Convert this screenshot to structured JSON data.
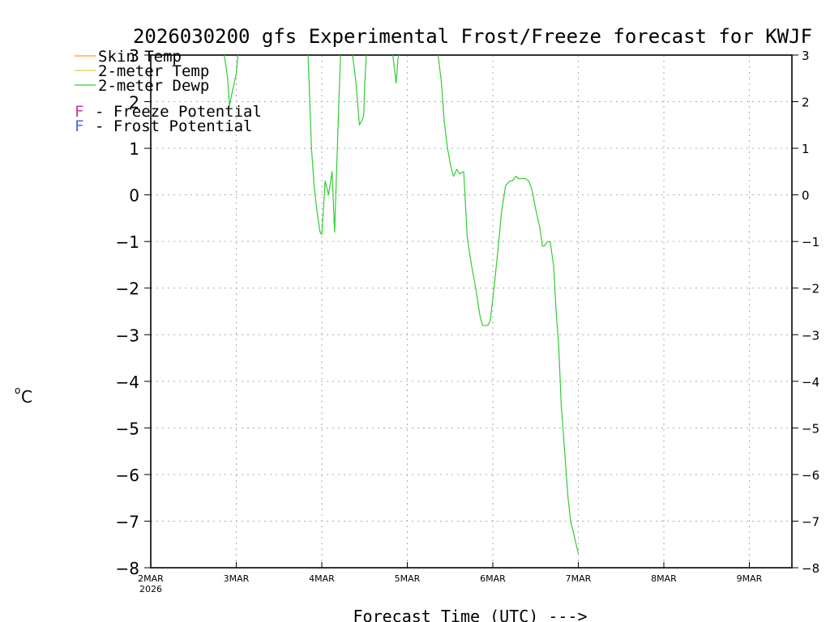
{
  "chart_data": {
    "type": "line",
    "title": "2026030200 gfs Experimental Frost/Freeze forecast for KWJF",
    "xlabel": "Forecast Time (UTC) --->",
    "ylabel": "°C",
    "ylabel_superscript": "o",
    "ylabel_unit": "C",
    "ylim": [
      -8,
      3
    ],
    "xlim": [
      0,
      7.5
    ],
    "x_units": "days since 2026-03-02 00Z",
    "grid": true,
    "y_ticks": [
      3,
      2,
      1,
      0,
      -1,
      -2,
      -3,
      -4,
      -5,
      -6,
      -7,
      -8
    ],
    "y_tick_labels": [
      "3",
      "2",
      "1",
      "0",
      "−1",
      "−2",
      "−3",
      "−4",
      "−5",
      "−6",
      "−7",
      "−8"
    ],
    "x_ticks": [
      {
        "x": 0,
        "label": "2MAR",
        "sublabel": "2026"
      },
      {
        "x": 1,
        "label": "3MAR"
      },
      {
        "x": 2,
        "label": "4MAR"
      },
      {
        "x": 3,
        "label": "5MAR"
      },
      {
        "x": 4,
        "label": "6MAR"
      },
      {
        "x": 5,
        "label": "7MAR"
      },
      {
        "x": 6,
        "label": "8MAR"
      },
      {
        "x": 7,
        "label": "9MAR"
      }
    ],
    "legend": [
      {
        "label": "Skin Temp",
        "color": "#ff9933"
      },
      {
        "label": "2-meter Temp",
        "color": "#e6c84d"
      },
      {
        "label": "2-meter Dewp",
        "color": "#33cc33"
      }
    ],
    "potential_legend": [
      {
        "marker": "F",
        "label": "- Freeze Potential",
        "color": "#cc3399"
      },
      {
        "marker": "F",
        "label": "- Frost Potential",
        "color": "#4466ee"
      }
    ],
    "series": [
      {
        "name": "2-meter Dewp",
        "color": "#33cc33",
        "points": [
          [
            0.86,
            3.0
          ],
          [
            0.9,
            2.5
          ],
          [
            0.92,
            1.9
          ],
          [
            0.94,
            2.1
          ],
          [
            1.0,
            2.6
          ],
          [
            1.02,
            3.0
          ],
          [
            null,
            null
          ],
          [
            1.84,
            3.0
          ],
          [
            1.86,
            2.0
          ],
          [
            1.88,
            1.0
          ],
          [
            1.91,
            0.2
          ],
          [
            1.94,
            -0.3
          ],
          [
            1.98,
            -0.8
          ],
          [
            2.0,
            -0.85
          ],
          [
            2.04,
            0.3
          ],
          [
            2.08,
            0.0
          ],
          [
            2.12,
            0.5
          ],
          [
            2.15,
            -0.8
          ],
          [
            2.18,
            0.9
          ],
          [
            2.2,
            2.0
          ],
          [
            2.22,
            3.0
          ],
          [
            null,
            null
          ],
          [
            2.36,
            3.0
          ],
          [
            2.4,
            2.4
          ],
          [
            2.44,
            1.5
          ],
          [
            2.47,
            1.6
          ],
          [
            2.49,
            1.7
          ],
          [
            2.5,
            2.3
          ],
          [
            2.52,
            3.0
          ],
          [
            null,
            null
          ],
          [
            2.83,
            3.0
          ],
          [
            2.87,
            2.4
          ],
          [
            2.89,
            2.9
          ],
          [
            2.9,
            3.0
          ],
          [
            null,
            null
          ],
          [
            3.36,
            3.0
          ],
          [
            3.4,
            2.4
          ],
          [
            3.43,
            1.6
          ],
          [
            3.47,
            1.0
          ],
          [
            3.51,
            0.6
          ],
          [
            3.54,
            0.4
          ],
          [
            3.58,
            0.55
          ],
          [
            3.61,
            0.45
          ],
          [
            3.66,
            0.5
          ],
          [
            3.7,
            -0.9
          ],
          [
            3.75,
            -1.5
          ],
          [
            3.8,
            -2.0
          ],
          [
            3.85,
            -2.6
          ],
          [
            3.88,
            -2.8
          ],
          [
            3.94,
            -2.8
          ],
          [
            3.97,
            -2.7
          ],
          [
            4.02,
            -1.9
          ],
          [
            4.07,
            -1.0
          ],
          [
            4.1,
            -0.4
          ],
          [
            4.15,
            0.2
          ],
          [
            4.2,
            0.3
          ],
          [
            4.23,
            0.3
          ],
          [
            4.27,
            0.4
          ],
          [
            4.3,
            0.35
          ],
          [
            4.38,
            0.35
          ],
          [
            4.42,
            0.3
          ],
          [
            4.46,
            0.1
          ],
          [
            4.5,
            -0.3
          ],
          [
            4.55,
            -0.7
          ],
          [
            4.58,
            -1.1
          ],
          [
            4.6,
            -1.1
          ],
          [
            4.64,
            -1.0
          ],
          [
            4.67,
            -1.0
          ],
          [
            4.71,
            -1.5
          ],
          [
            4.74,
            -2.5
          ],
          [
            4.77,
            -3.2
          ],
          [
            4.8,
            -4.5
          ],
          [
            4.84,
            -5.5
          ],
          [
            4.88,
            -6.5
          ],
          [
            4.91,
            -7.0
          ],
          [
            4.95,
            -7.3
          ],
          [
            5.0,
            -7.7
          ]
        ]
      }
    ]
  }
}
